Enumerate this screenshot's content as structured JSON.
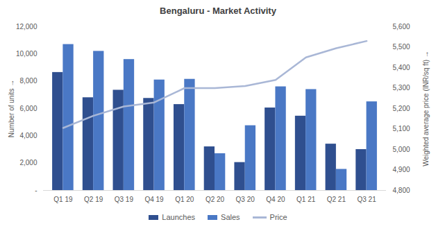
{
  "chart_data": {
    "type": "bar",
    "title": "Bengaluru - Market Activity",
    "categories": [
      "Q1 19",
      "Q2 19",
      "Q3 19",
      "Q4 19",
      "Q1 20",
      "Q2 20",
      "Q3 20",
      "Q4 20",
      "Q1 21",
      "Q2 21",
      "Q3 21"
    ],
    "series": [
      {
        "name": "Launches",
        "color": "#2f4f8f",
        "values": [
          8650,
          6800,
          7350,
          6750,
          6300,
          3200,
          2050,
          6050,
          5450,
          3400,
          3000
        ]
      },
      {
        "name": "Sales",
        "color": "#4a78c5",
        "values": [
          10700,
          10200,
          9600,
          8100,
          8150,
          2700,
          4750,
          7600,
          7400,
          1550,
          6500
        ]
      },
      {
        "name": "Price",
        "type": "line",
        "axis": "y2",
        "color": "#a9b7d6",
        "values": [
          5105,
          5165,
          5210,
          5230,
          5300,
          5300,
          5310,
          5340,
          5450,
          5495,
          5530
        ]
      }
    ],
    "ylabel": "Number of units",
    "y2label": "Weighted average price (INR/sq ft)",
    "ylim": [
      0,
      12000
    ],
    "yticks": [
      {
        "value": 0,
        "label": "-"
      },
      {
        "value": 2000,
        "label": "2,000"
      },
      {
        "value": 4000,
        "label": "4,000"
      },
      {
        "value": 6000,
        "label": "6,000"
      },
      {
        "value": 8000,
        "label": "8,000"
      },
      {
        "value": 10000,
        "label": "10,000"
      },
      {
        "value": 12000,
        "label": "12,000"
      }
    ],
    "y2lim": [
      4800,
      5600
    ],
    "y2ticks": [
      {
        "value": 4800,
        "label": "4,800"
      },
      {
        "value": 4900,
        "label": "4,900"
      },
      {
        "value": 5000,
        "label": "5,000"
      },
      {
        "value": 5100,
        "label": "5,100"
      },
      {
        "value": 5200,
        "label": "5,200"
      },
      {
        "value": 5300,
        "label": "5,300"
      },
      {
        "value": 5400,
        "label": "5,400"
      },
      {
        "value": 5500,
        "label": "5,500"
      },
      {
        "value": 5600,
        "label": "5,600"
      }
    ],
    "legend": "bottom",
    "grid": false
  }
}
